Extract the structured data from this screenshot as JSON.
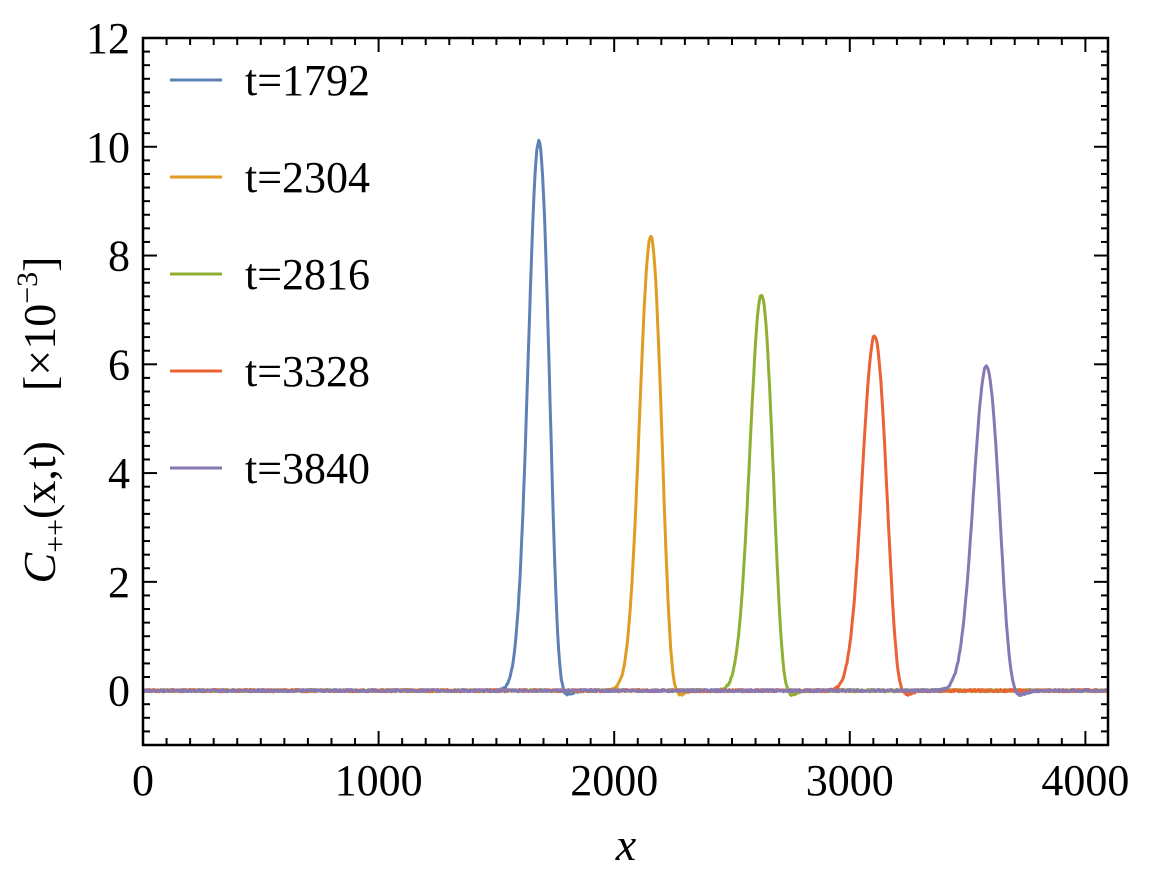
{
  "chart_data": {
    "type": "line",
    "xlabel": "x",
    "ylabel": {
      "symbol": "C",
      "subscript": "++",
      "args": "(x,t)",
      "scale_open": "[×10",
      "scale_exp": "−3",
      "scale_close": "]"
    },
    "xlim": [
      0,
      4096
    ],
    "ylim": [
      -1,
      12
    ],
    "x_ticks": [
      0,
      1000,
      2000,
      3000,
      4000
    ],
    "x_tick_labels": [
      "0",
      "1000",
      "2000",
      "3000",
      "4000"
    ],
    "y_ticks": [
      0,
      2,
      4,
      6,
      8,
      10,
      12
    ],
    "y_tick_labels": [
      "0",
      "2",
      "4",
      "6",
      "8",
      "10",
      "12"
    ],
    "grid": false,
    "legend_position": "top-left",
    "series": [
      {
        "name": "t=1792",
        "color": "#5e81b5",
        "peak_x": 1680,
        "peak_y": 10.1,
        "width": 45
      },
      {
        "name": "t=2304",
        "color": "#e19c24",
        "peak_x": 2155,
        "peak_y": 8.35,
        "width": 47
      },
      {
        "name": "t=2816",
        "color": "#8fb032",
        "peak_x": 2625,
        "peak_y": 7.28,
        "width": 49
      },
      {
        "name": "t=3328",
        "color": "#eb6235",
        "peak_x": 3105,
        "peak_y": 6.52,
        "width": 52
      },
      {
        "name": "t=3840",
        "color": "#8778b3",
        "peak_x": 3580,
        "peak_y": 5.97,
        "width": 55
      }
    ]
  }
}
